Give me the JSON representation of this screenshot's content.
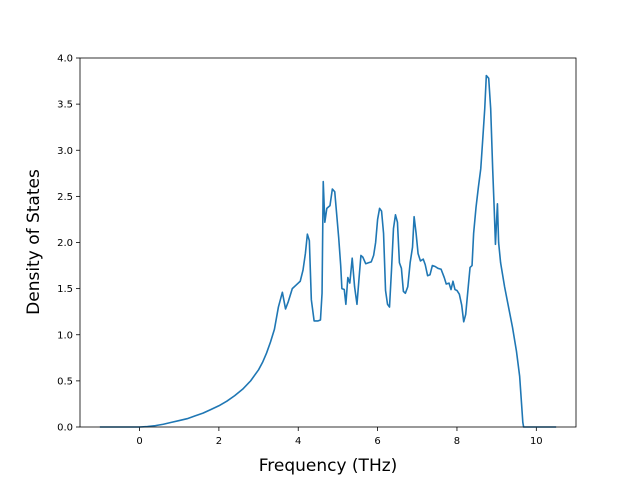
{
  "chart_data": {
    "type": "line",
    "title": "",
    "xlabel": "Frequency (THz)",
    "ylabel": "Density of States",
    "xlim": [
      -1.5,
      11.0
    ],
    "ylim": [
      0.0,
      4.0
    ],
    "xticks": [
      0,
      2,
      4,
      6,
      8,
      10
    ],
    "xtick_labels": [
      "0",
      "2",
      "4",
      "6",
      "8",
      "10"
    ],
    "yticks": [
      0.0,
      0.5,
      1.0,
      1.5,
      2.0,
      2.5,
      3.0,
      3.5,
      4.0
    ],
    "ytick_labels": [
      "0.0",
      "0.5",
      "1.0",
      "1.5",
      "2.0",
      "2.5",
      "3.0",
      "3.5",
      "4.0"
    ],
    "grid": false,
    "line_color": "#1f77b4",
    "series": [
      {
        "points": [
          [
            -1.0,
            0.0
          ],
          [
            0.0,
            0.0
          ],
          [
            0.2,
            0.005
          ],
          [
            0.4,
            0.015
          ],
          [
            0.6,
            0.03
          ],
          [
            0.8,
            0.05
          ],
          [
            1.0,
            0.07
          ],
          [
            1.2,
            0.09
          ],
          [
            1.4,
            0.12
          ],
          [
            1.6,
            0.15
          ],
          [
            1.8,
            0.19
          ],
          [
            2.0,
            0.23
          ],
          [
            2.2,
            0.28
          ],
          [
            2.4,
            0.34
          ],
          [
            2.6,
            0.41
          ],
          [
            2.8,
            0.5
          ],
          [
            3.0,
            0.62
          ],
          [
            3.1,
            0.7
          ],
          [
            3.2,
            0.8
          ],
          [
            3.3,
            0.92
          ],
          [
            3.4,
            1.06
          ],
          [
            3.5,
            1.3
          ],
          [
            3.55,
            1.38
          ],
          [
            3.6,
            1.46
          ],
          [
            3.68,
            1.28
          ],
          [
            3.75,
            1.36
          ],
          [
            3.85,
            1.5
          ],
          [
            3.95,
            1.54
          ],
          [
            4.05,
            1.58
          ],
          [
            4.12,
            1.7
          ],
          [
            4.18,
            1.88
          ],
          [
            4.23,
            2.09
          ],
          [
            4.28,
            2.02
          ],
          [
            4.33,
            1.38
          ],
          [
            4.4,
            1.15
          ],
          [
            4.5,
            1.15
          ],
          [
            4.56,
            1.16
          ],
          [
            4.6,
            1.45
          ],
          [
            4.63,
            2.66
          ],
          [
            4.67,
            2.22
          ],
          [
            4.72,
            2.37
          ],
          [
            4.8,
            2.4
          ],
          [
            4.86,
            2.58
          ],
          [
            4.92,
            2.55
          ],
          [
            4.97,
            2.3
          ],
          [
            5.02,
            2.05
          ],
          [
            5.07,
            1.75
          ],
          [
            5.1,
            1.5
          ],
          [
            5.16,
            1.49
          ],
          [
            5.2,
            1.33
          ],
          [
            5.25,
            1.62
          ],
          [
            5.3,
            1.56
          ],
          [
            5.36,
            1.83
          ],
          [
            5.42,
            1.52
          ],
          [
            5.48,
            1.33
          ],
          [
            5.53,
            1.6
          ],
          [
            5.58,
            1.86
          ],
          [
            5.63,
            1.84
          ],
          [
            5.7,
            1.77
          ],
          [
            5.77,
            1.78
          ],
          [
            5.84,
            1.79
          ],
          [
            5.9,
            1.86
          ],
          [
            5.95,
            2.0
          ],
          [
            6.0,
            2.25
          ],
          [
            6.05,
            2.37
          ],
          [
            6.1,
            2.34
          ],
          [
            6.15,
            2.1
          ],
          [
            6.2,
            1.48
          ],
          [
            6.25,
            1.33
          ],
          [
            6.3,
            1.3
          ],
          [
            6.35,
            1.7
          ],
          [
            6.4,
            2.15
          ],
          [
            6.45,
            2.3
          ],
          [
            6.5,
            2.22
          ],
          [
            6.55,
            1.78
          ],
          [
            6.6,
            1.72
          ],
          [
            6.65,
            1.47
          ],
          [
            6.7,
            1.45
          ],
          [
            6.76,
            1.52
          ],
          [
            6.82,
            1.78
          ],
          [
            6.88,
            1.95
          ],
          [
            6.92,
            2.28
          ],
          [
            6.97,
            2.1
          ],
          [
            7.02,
            1.88
          ],
          [
            7.08,
            1.8
          ],
          [
            7.15,
            1.82
          ],
          [
            7.2,
            1.76
          ],
          [
            7.26,
            1.64
          ],
          [
            7.32,
            1.65
          ],
          [
            7.38,
            1.75
          ],
          [
            7.45,
            1.74
          ],
          [
            7.52,
            1.72
          ],
          [
            7.6,
            1.71
          ],
          [
            7.68,
            1.62
          ],
          [
            7.73,
            1.55
          ],
          [
            7.8,
            1.56
          ],
          [
            7.85,
            1.49
          ],
          [
            7.9,
            1.58
          ],
          [
            7.95,
            1.49
          ],
          [
            8.0,
            1.48
          ],
          [
            8.06,
            1.44
          ],
          [
            8.12,
            1.32
          ],
          [
            8.17,
            1.14
          ],
          [
            8.22,
            1.22
          ],
          [
            8.28,
            1.5
          ],
          [
            8.33,
            1.73
          ],
          [
            8.38,
            1.75
          ],
          [
            8.42,
            2.1
          ],
          [
            8.48,
            2.38
          ],
          [
            8.54,
            2.6
          ],
          [
            8.6,
            2.8
          ],
          [
            8.65,
            3.12
          ],
          [
            8.7,
            3.45
          ],
          [
            8.74,
            3.81
          ],
          [
            8.8,
            3.78
          ],
          [
            8.85,
            3.45
          ],
          [
            8.9,
            2.8
          ],
          [
            8.94,
            2.35
          ],
          [
            8.97,
            1.98
          ],
          [
            9.02,
            2.42
          ],
          [
            9.05,
            2.0
          ],
          [
            9.1,
            1.78
          ],
          [
            9.2,
            1.52
          ],
          [
            9.3,
            1.3
          ],
          [
            9.4,
            1.08
          ],
          [
            9.5,
            0.82
          ],
          [
            9.58,
            0.55
          ],
          [
            9.62,
            0.3
          ],
          [
            9.66,
            0.05
          ],
          [
            9.68,
            0.0
          ],
          [
            10.5,
            0.0
          ]
        ]
      }
    ]
  }
}
